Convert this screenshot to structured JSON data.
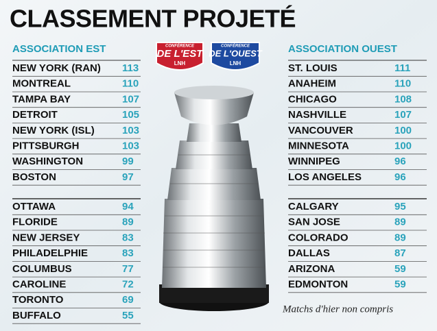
{
  "title": "CLASSEMENT PROJETÉ",
  "east": {
    "header": "ASSOCIATION EST",
    "logo": {
      "top": "CONFÉRENCE",
      "main": "DE L'EST",
      "bottom": "LNH"
    },
    "groups": [
      [
        [
          "NEW YORK (RAN)",
          113
        ],
        [
          "MONTREAL",
          110
        ],
        [
          "TAMPA BAY",
          107
        ],
        [
          "DETROIT",
          105
        ],
        [
          "NEW YORK (ISL)",
          103
        ],
        [
          "PITTSBURGH",
          103
        ],
        [
          "WASHINGTON",
          99
        ],
        [
          "BOSTON",
          97
        ]
      ],
      [
        [
          "OTTAWA",
          94
        ],
        [
          "FLORIDE",
          89
        ],
        [
          "NEW JERSEY",
          83
        ],
        [
          "PHILADELPHIE",
          83
        ],
        [
          "COLUMBUS",
          77
        ],
        [
          "CAROLINE",
          72
        ],
        [
          "TORONTO",
          69
        ],
        [
          "BUFFALO",
          55
        ]
      ]
    ]
  },
  "west": {
    "header": "ASSOCIATION OUEST",
    "logo": {
      "top": "CONFÉRENCE",
      "main": "DE L'OUEST",
      "bottom": "LNH"
    },
    "groups": [
      [
        [
          "ST. LOUIS",
          111
        ],
        [
          "ANAHEIM",
          110
        ],
        [
          "CHICAGO",
          108
        ],
        [
          "NASHVILLE",
          107
        ],
        [
          "VANCOUVER",
          100
        ],
        [
          "MINNESOTA",
          100
        ],
        [
          "WINNIPEG",
          96
        ],
        [
          "LOS ANGELES",
          96
        ]
      ],
      [
        [
          "CALGARY",
          95
        ],
        [
          "SAN JOSE",
          89
        ],
        [
          "COLORADO",
          89
        ],
        [
          "DALLAS",
          87
        ],
        [
          "ARIZONA",
          59
        ],
        [
          "EDMONTON",
          59
        ]
      ]
    ]
  },
  "note": "Matchs d'hier non compris"
}
